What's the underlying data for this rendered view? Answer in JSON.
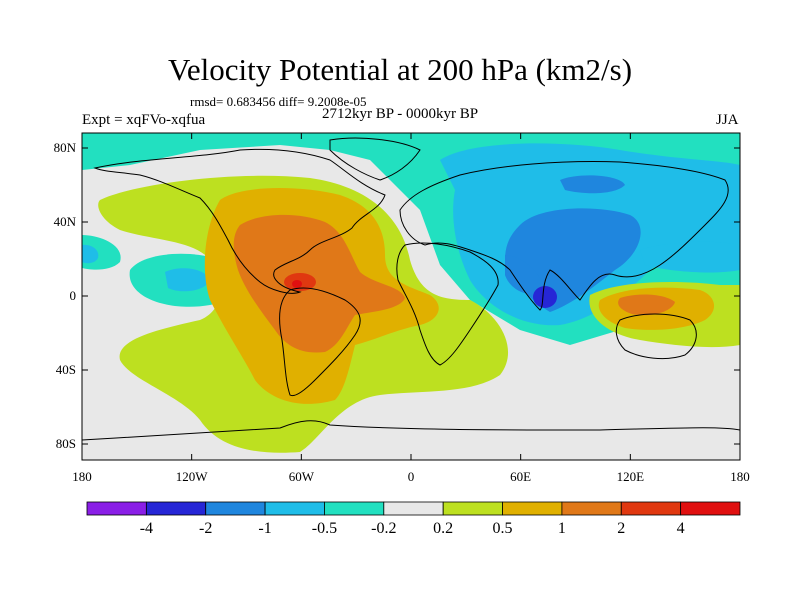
{
  "header": {
    "title": "Velocity Potential at 200 hPa (km2/s)",
    "stats": "rmsd= 0.683456 diff= 9.2008e-05",
    "experiment": "Expt = xqFVo-xqfua",
    "period": "2712kyr BP - 0000kyr BP",
    "season": "JJA"
  },
  "axes": {
    "lat_labels": [
      "80N",
      "40N",
      "0",
      "40S",
      "80S"
    ],
    "lat_values": [
      80,
      40,
      0,
      -40,
      -80
    ],
    "lon_labels": [
      "180",
      "120W",
      "60W",
      "0",
      "60E",
      "120E",
      "180"
    ],
    "lon_values": [
      -180,
      -120,
      -60,
      0,
      60,
      120,
      180
    ]
  },
  "colorbar": {
    "labels": [
      "-4",
      "-2",
      "-1",
      "-0.5",
      "-0.2",
      "0.2",
      "0.5",
      "1",
      "2",
      "4"
    ],
    "colors": [
      "#8a1ee6",
      "#2626d6",
      "#1f86de",
      "#1fbde8",
      "#22e0c0",
      "#e8e8e8",
      "#bde020",
      "#e0b000",
      "#e07818",
      "#e03810",
      "#e01010"
    ]
  },
  "colors": {
    "background": "#e8e8e8",
    "coast": "#000000"
  }
}
